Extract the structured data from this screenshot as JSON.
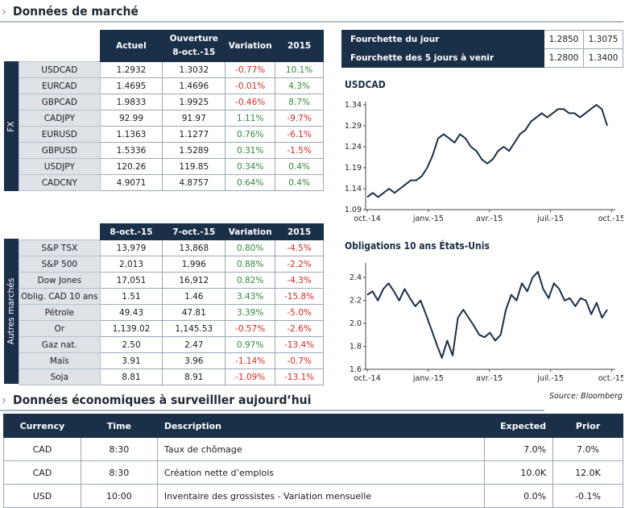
{
  "market": {
    "title": "Données de marché",
    "fx_label": "FX",
    "other_label": "Autres marchés",
    "fx_headers": [
      "Actuel",
      "Ouverture\n8-oct.-15",
      "Variation",
      "2015"
    ],
    "other_headers": [
      "8-oct.-15",
      "7-oct.-15",
      "Variation",
      "2015"
    ],
    "fx_rows": [
      {
        "name": "USDCAD",
        "a": "1.2932",
        "b": "1.3032",
        "var": "-0.77%",
        "ytd": "10.1%"
      },
      {
        "name": "EURCAD",
        "a": "1.4695",
        "b": "1.4696",
        "var": "-0.01%",
        "ytd": "4.3%"
      },
      {
        "name": "GBPCAD",
        "a": "1.9833",
        "b": "1.9925",
        "var": "-0.46%",
        "ytd": "8.7%"
      },
      {
        "name": "CADJPY",
        "a": "92.99",
        "b": "91.97",
        "var": "1.11%",
        "ytd": "-9.7%"
      },
      {
        "name": "EURUSD",
        "a": "1.1363",
        "b": "1.1277",
        "var": "0.76%",
        "ytd": "-6.1%"
      },
      {
        "name": "GBPUSD",
        "a": "1.5336",
        "b": "1.5289",
        "var": "0.31%",
        "ytd": "-1.5%"
      },
      {
        "name": "USDJPY",
        "a": "120.26",
        "b": "119.85",
        "var": "0.34%",
        "ytd": "0.4%"
      },
      {
        "name": "CADCNY",
        "a": "4.9071",
        "b": "4.8757",
        "var": "0.64%",
        "ytd": "0.4%"
      }
    ],
    "other_rows": [
      {
        "name": "S&P TSX",
        "a": "13,979",
        "b": "13,868",
        "var": "0.80%",
        "ytd": "-4.5%"
      },
      {
        "name": "S&P 500",
        "a": "2,013",
        "b": "1,996",
        "var": "0.88%",
        "ytd": "-2.2%"
      },
      {
        "name": "Dow Jones",
        "a": "17,051",
        "b": "16,912",
        "var": "0.82%",
        "ytd": "-4.3%"
      },
      {
        "name": "Oblig. CAD 10 ans",
        "a": "1.51",
        "b": "1.46",
        "var": "3.43%",
        "ytd": "-15.8%"
      },
      {
        "name": "Pétrole",
        "a": "49.43",
        "b": "47.81",
        "var": "3.39%",
        "ytd": "-5.0%"
      },
      {
        "name": "Or",
        "a": "1,139.02",
        "b": "1,145.53",
        "var": "-0.57%",
        "ytd": "-2.6%"
      },
      {
        "name": "Gaz nat.",
        "a": "2.50",
        "b": "2.47",
        "var": "0.97%",
        "ytd": "-13.4%"
      },
      {
        "name": "Maïs",
        "a": "3.91",
        "b": "3.96",
        "var": "-1.14%",
        "ytd": "-0.7%"
      },
      {
        "name": "Soja",
        "a": "8.81",
        "b": "8.91",
        "var": "-1.09%",
        "ytd": "-13.1%"
      }
    ],
    "colors": {
      "navy": "#1a2f48",
      "positive": "#2f8a3c",
      "negative": "#d42a24",
      "label_bg": "#dfe3e8"
    }
  },
  "range": {
    "rows": [
      {
        "label": "Fourchette du  jour",
        "low": "1.2850",
        "high": "1.3075"
      },
      {
        "label": "Fourchette des 5 jours à venir",
        "low": "1.2800",
        "high": "1.3400"
      }
    ]
  },
  "chart_data": [
    {
      "type": "line",
      "title": "USDCAD",
      "xticks": [
        "oct.-14",
        "janv.-15",
        "avr.-15",
        "juil.-15",
        "oct.-15"
      ],
      "yticks": [
        "1.09",
        "1.14",
        "1.19",
        "1.24",
        "1.29",
        "1.34"
      ],
      "ylim": [
        1.09,
        1.34
      ],
      "series": [
        {
          "values": [
            1.12,
            1.13,
            1.12,
            1.13,
            1.14,
            1.13,
            1.14,
            1.15,
            1.16,
            1.16,
            1.17,
            1.19,
            1.22,
            1.26,
            1.27,
            1.26,
            1.25,
            1.27,
            1.26,
            1.24,
            1.23,
            1.21,
            1.2,
            1.21,
            1.23,
            1.24,
            1.23,
            1.25,
            1.27,
            1.28,
            1.3,
            1.31,
            1.32,
            1.31,
            1.32,
            1.33,
            1.33,
            1.32,
            1.32,
            1.31,
            1.32,
            1.33,
            1.34,
            1.33,
            1.29
          ]
        }
      ],
      "color": "#1a2f48"
    },
    {
      "type": "line",
      "title": "Obligations 10 ans États-Unis",
      "xticks": [
        "oct.-14",
        "janv.-15",
        "avr.-15",
        "juil.-15",
        "oct.-15"
      ],
      "yticks": [
        "1.6",
        "1.8",
        "2.0",
        "2.2",
        "2.4"
      ],
      "ylim": [
        1.6,
        2.5
      ],
      "series": [
        {
          "values": [
            2.25,
            2.28,
            2.2,
            2.3,
            2.35,
            2.28,
            2.2,
            2.3,
            2.22,
            2.15,
            2.2,
            2.08,
            1.95,
            1.82,
            1.7,
            1.85,
            1.72,
            2.05,
            2.12,
            2.05,
            1.98,
            1.9,
            1.88,
            1.92,
            1.85,
            1.9,
            2.12,
            2.25,
            2.2,
            2.35,
            2.28,
            2.4,
            2.45,
            2.3,
            2.22,
            2.35,
            2.3,
            2.2,
            2.22,
            2.15,
            2.22,
            2.2,
            2.08,
            2.18,
            2.05,
            2.12
          ]
        }
      ],
      "color": "#1a2f48"
    }
  ],
  "source": "Source: Bloomberg",
  "events": {
    "title": "Données économiques à surveilller aujourd’hui",
    "headers": [
      "Currency",
      "Time",
      "Description",
      "Expected",
      "Prior"
    ],
    "rows": [
      {
        "cur": "CAD",
        "time": "8:30",
        "desc": "Taux de chômage",
        "exp": "7.0%",
        "prior": "7.0%"
      },
      {
        "cur": "CAD",
        "time": "8:30",
        "desc": "Création nette d’emplois",
        "exp": "10.0K",
        "prior": "12.0K"
      },
      {
        "cur": "USD",
        "time": "10:00",
        "desc": "Inventaire des grossistes - Variation mensuelle",
        "exp": "0.0%",
        "prior": "-0.1%"
      }
    ]
  }
}
